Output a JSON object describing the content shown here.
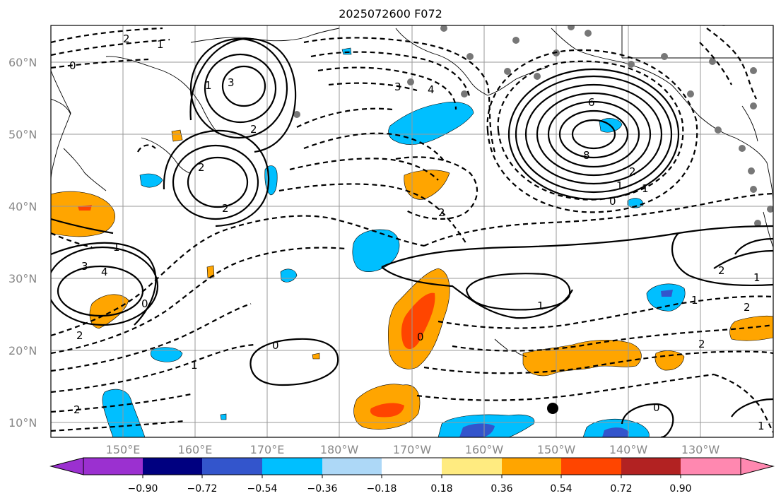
{
  "title": "2025072600 F072",
  "lat_labels": [
    "60°N",
    "50°N",
    "40°N",
    "30°N",
    "20°N",
    "10°N"
  ],
  "lon_labels": [
    "150°E",
    "160°E",
    "170°E",
    "180°W",
    "170°W",
    "160°W",
    "150°W",
    "140°W",
    "130°W"
  ],
  "colorbar": {
    "tick_labels": [
      "−0.90",
      "−0.72",
      "−0.54",
      "−0.36",
      "−0.18",
      "0.18",
      "0.36",
      "0.54",
      "0.72",
      "0.90"
    ],
    "colors": [
      "#9b30d0",
      "#000080",
      "#3355cc",
      "#00bfff",
      "#add8f7",
      "#ffffff",
      "#ffeb80",
      "#ffa500",
      "#ff4500",
      "#b22222",
      "#ff88b0"
    ]
  },
  "contour_labels": [
    "2",
    "1",
    "0",
    "3",
    "1",
    "2",
    "2",
    "2",
    "3",
    "4",
    "6",
    "8",
    "2",
    "1",
    "0",
    "1",
    "2",
    "2",
    "3",
    "4",
    "1",
    "0",
    "1",
    "2",
    "0",
    "1",
    "2",
    "0",
    "1",
    "2",
    "2",
    "1",
    "0",
    "1"
  ],
  "fill_colors": {
    "blue": "#00bfff",
    "darkblue": "#3355cc",
    "orange": "#ffa500",
    "red": "#ff4500"
  }
}
